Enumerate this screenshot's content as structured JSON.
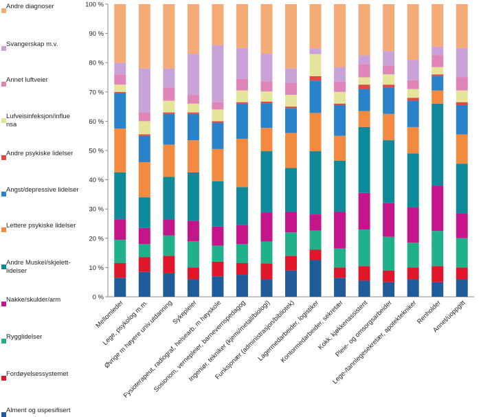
{
  "chart_data": {
    "type": "bar",
    "stacked": true,
    "title": "",
    "xlabel": "",
    "ylabel": "",
    "ylim": [
      0,
      100
    ],
    "yticks": [
      0,
      10,
      20,
      30,
      40,
      50,
      60,
      70,
      80,
      90,
      100
    ],
    "ytick_labels": [
      "0 %",
      "10 %",
      "20 %",
      "30 %",
      "40 %",
      "50 %",
      "60 %",
      "70 %",
      "80 %",
      "90 %",
      "100 %"
    ],
    "legend_position": "left",
    "categories": [
      "Mellomleder",
      "Lege, psykolog m.m.",
      "Øvrige m høyere univ.utdanning",
      "Sykepleier",
      "Fysioterapeut, radiograf, helsearb. m høyskole",
      "Sosionom, vernepleier, barnevernspedagog",
      "Ingeniør, tekniker (kjemi/metall/biologi)",
      "Funksjonær (administrasjon/bibliotek)",
      "Lagermedarbeider, logistiker",
      "Kontormedarbeider, sekretær",
      "Kokk, kjøkkenassistent",
      "Pleie- og omsorgsarbeider",
      "Lege-/tannlegesekretær, apotektekniker",
      "Renholder",
      "Annet/uoppgitt"
    ],
    "series": [
      {
        "name": "Alment og uspesifisert",
        "color": "#1F5C99",
        "values": [
          6.5,
          8.5,
          8.0,
          6.0,
          7.0,
          7.5,
          6.0,
          9.0,
          12.5,
          6.5,
          5.5,
          5.0,
          6.0,
          5.0,
          6.0
        ]
      },
      {
        "name": "Fordøyelsessystemet",
        "color": "#E0162B",
        "values": [
          5.0,
          5.0,
          6.0,
          4.0,
          5.0,
          4.0,
          5.5,
          5.0,
          3.5,
          3.5,
          5.0,
          4.0,
          4.0,
          5.5,
          4.0
        ]
      },
      {
        "name": "Rygglidelser",
        "color": "#20B08A",
        "values": [
          8.0,
          4.5,
          7.0,
          9.0,
          5.5,
          6.5,
          7.5,
          8.0,
          6.5,
          6.5,
          12.5,
          11.5,
          8.5,
          12.0,
          10.0
        ]
      },
      {
        "name": "Nakke/skulder/arm",
        "color": "#C4168A",
        "values": [
          7.0,
          5.5,
          5.5,
          7.0,
          6.5,
          6.5,
          10.0,
          7.0,
          5.5,
          12.5,
          12.5,
          11.5,
          12.0,
          15.5,
          8.5
        ]
      },
      {
        "name": "Andre Muskel/skjelett-lidelser",
        "color": "#0E8A9A",
        "values": [
          16.0,
          10.5,
          14.5,
          16.5,
          15.5,
          13.0,
          21.0,
          15.0,
          21.5,
          17.5,
          22.5,
          21.5,
          18.5,
          28.0,
          17.0
        ]
      },
      {
        "name": "Lettere psykiske lidelser",
        "color": "#F28B40",
        "values": [
          15.0,
          12.0,
          11.0,
          11.0,
          11.0,
          16.5,
          8.0,
          12.0,
          13.0,
          8.5,
          5.5,
          9.0,
          9.0,
          4.5,
          10.0
        ]
      },
      {
        "name": "Angst/depressive lidelser",
        "color": "#2A82C8",
        "values": [
          12.0,
          9.0,
          10.5,
          9.0,
          9.0,
          12.0,
          8.5,
          8.5,
          11.0,
          10.5,
          7.5,
          9.0,
          9.0,
          5.0,
          10.0
        ]
      },
      {
        "name": "Andre psykiske lidelser",
        "color": "#E04A45",
        "values": [
          0.5,
          0.5,
          0.5,
          0.5,
          0.5,
          0.5,
          0.5,
          0.5,
          1.5,
          0.5,
          1.5,
          1.0,
          1.0,
          0.5,
          1.0
        ]
      },
      {
        "name": "Lufveisinfeksjon/influensa",
        "color": "#E6E49A",
        "values": [
          2.5,
          4.5,
          4.0,
          3.0,
          4.0,
          4.0,
          3.5,
          4.0,
          7.5,
          4.0,
          2.5,
          3.5,
          3.0,
          2.5,
          4.0
        ]
      },
      {
        "name": "Annet luftveier",
        "color": "#E085B8",
        "values": [
          3.5,
          3.0,
          4.5,
          3.0,
          2.5,
          4.0,
          3.5,
          4.0,
          0.0,
          3.5,
          4.5,
          3.0,
          3.0,
          4.0,
          4.5
        ]
      },
      {
        "name": "Svangerskap m.v.",
        "color": "#C9A2D8",
        "values": [
          4.0,
          15.0,
          6.5,
          14.0,
          19.5,
          10.5,
          9.5,
          5.0,
          2.0,
          5.0,
          3.0,
          5.0,
          7.0,
          3.0,
          10.0
        ]
      },
      {
        "name": "Andre diagnoser",
        "color": "#F5AB78",
        "values": [
          20.0,
          22.0,
          22.0,
          17.0,
          14.0,
          15.0,
          17.0,
          22.0,
          15.0,
          21.5,
          17.5,
          16.0,
          19.0,
          14.5,
          15.0
        ]
      }
    ]
  },
  "legend": {
    "items": [
      {
        "label": "Andre diagnoser",
        "color": "#F5AB78",
        "icon": "square-swatch"
      },
      {
        "label": "Svangerskap m.v.",
        "color": "#C9A2D8",
        "icon": "square-swatch"
      },
      {
        "label": "Annet luftveier",
        "color": "#E085B8",
        "icon": "square-swatch"
      },
      {
        "label": "Lufveisinfeksjon/influe nsa",
        "color": "#E6E49A",
        "icon": "square-swatch"
      },
      {
        "label": "Andre psykiske lidelser",
        "color": "#E04A45",
        "icon": "square-swatch"
      },
      {
        "label": "Angst/depressive lidelser",
        "color": "#2A82C8",
        "icon": "square-swatch"
      },
      {
        "label": "Lettere psykiske lidelser",
        "color": "#F28B40",
        "icon": "square-swatch"
      },
      {
        "label": "Andre Muskel/skjelett-lidelser",
        "color": "#0E8A9A",
        "icon": "square-swatch"
      },
      {
        "label": "Nakke/skulder/arm",
        "color": "#C4168A",
        "icon": "square-swatch"
      },
      {
        "label": "Rygglidelser",
        "color": "#20B08A",
        "icon": "square-swatch"
      },
      {
        "label": "Fordøyelsessystemet",
        "color": "#E0162B",
        "icon": "square-swatch"
      },
      {
        "label": "Alment og uspesifisert",
        "color": "#1F5C99",
        "icon": "square-swatch"
      }
    ]
  }
}
